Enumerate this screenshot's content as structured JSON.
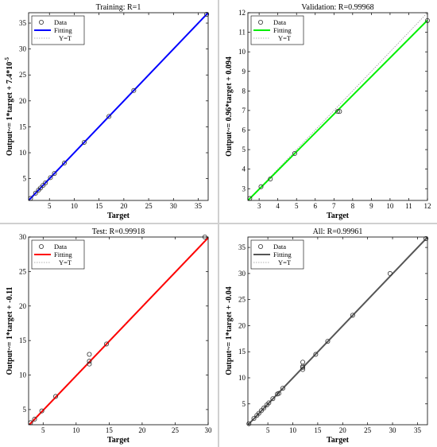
{
  "chart_data": [
    {
      "type": "scatter",
      "title": "Training: R=1",
      "xlabel": "Target",
      "ylabel": "Output~= 1*target + 7.4*10",
      "ylabel_exp": "-5",
      "xlim": [
        0.8,
        37
      ],
      "ylim": [
        0.8,
        37
      ],
      "xticks": [
        5,
        10,
        15,
        20,
        25,
        30,
        35
      ],
      "yticks": [
        5,
        10,
        15,
        20,
        25,
        30,
        35
      ],
      "fit": {
        "slope": 1,
        "intercept": 7.4e-05
      },
      "fit_color": "#0000ff",
      "legend": {
        "data": "Data",
        "fit": "Fitting",
        "ident": "Y=T"
      },
      "points": {
        "x": [
          1.2,
          2.2,
          2.8,
          3.2,
          3.7,
          4.2,
          5.2,
          6.0,
          8.0,
          12.0,
          17.0,
          22.0,
          36.7
        ],
        "y": [
          1.2,
          2.2,
          2.8,
          3.2,
          3.7,
          4.2,
          5.2,
          6.0,
          8.0,
          12.0,
          17.0,
          22.0,
          36.7
        ]
      }
    },
    {
      "type": "scatter",
      "title": "Validation: R=0.99968",
      "xlabel": "Target",
      "ylabel": "Output~= 0.96*target + 0.094",
      "ylabel_exp": "",
      "xlim": [
        2.4,
        12
      ],
      "ylim": [
        2.4,
        12
      ],
      "xticks": [
        3,
        4,
        5,
        6,
        7,
        8,
        9,
        10,
        11,
        12
      ],
      "yticks": [
        3,
        4,
        5,
        6,
        7,
        8,
        9,
        10,
        11,
        12
      ],
      "fit": {
        "slope": 0.96,
        "intercept": 0.094
      },
      "fit_color": "#00ee00",
      "legend": {
        "data": "Data",
        "fit": "Fitting",
        "ident": "Y=T"
      },
      "points": {
        "x": [
          2.5,
          3.1,
          3.6,
          4.9,
          7.2,
          7.3,
          12.0
        ],
        "y": [
          2.5,
          3.1,
          3.5,
          4.8,
          6.95,
          6.95,
          11.6
        ]
      }
    },
    {
      "type": "scatter",
      "title": "Test: R=0.99918",
      "xlabel": "Target",
      "ylabel": "Output~= 1*target + -0.11",
      "ylabel_exp": "",
      "xlim": [
        2.8,
        30
      ],
      "ylim": [
        2.8,
        30
      ],
      "xticks": [
        5,
        10,
        15,
        20,
        25,
        30
      ],
      "yticks": [
        5,
        10,
        15,
        20,
        25,
        30
      ],
      "fit": {
        "slope": 1,
        "intercept": -0.11
      },
      "fit_color": "#ff0000",
      "legend": {
        "data": "Data",
        "fit": "Fitting",
        "ident": "Y=T"
      },
      "points": {
        "x": [
          3.1,
          3.7,
          4.8,
          6.9,
          12.0,
          12.0,
          12.0,
          14.6,
          29.5
        ],
        "y": [
          3.1,
          3.6,
          4.8,
          6.9,
          13.0,
          12.0,
          11.6,
          14.5,
          30.0
        ]
      }
    },
    {
      "type": "scatter",
      "title": "All: R=0.99961",
      "xlabel": "Target",
      "ylabel": "Output~= 1*target + -0.04",
      "ylabel_exp": "",
      "xlim": [
        1,
        37
      ],
      "ylim": [
        1,
        37
      ],
      "xticks": [
        5,
        10,
        15,
        20,
        25,
        30,
        35
      ],
      "yticks": [
        5,
        10,
        15,
        20,
        25,
        30,
        35
      ],
      "fit": {
        "slope": 1,
        "intercept": -0.04
      },
      "fit_color": "#555555",
      "legend": {
        "data": "Data",
        "fit": "Fitting",
        "ident": "Y=T"
      },
      "points": {
        "x": [
          1.2,
          2.2,
          2.8,
          3.2,
          3.7,
          4.2,
          4.8,
          5.2,
          6.0,
          6.9,
          7.2,
          8.0,
          12.0,
          12.0,
          12.0,
          12.0,
          14.6,
          17.0,
          22.0,
          29.5,
          36.7
        ],
        "y": [
          1.2,
          2.2,
          2.8,
          3.2,
          3.7,
          4.2,
          4.8,
          5.2,
          6.0,
          6.9,
          7.0,
          8.0,
          13.0,
          12.2,
          12.0,
          11.6,
          14.5,
          17.0,
          22.0,
          30.0,
          36.7
        ]
      }
    }
  ]
}
